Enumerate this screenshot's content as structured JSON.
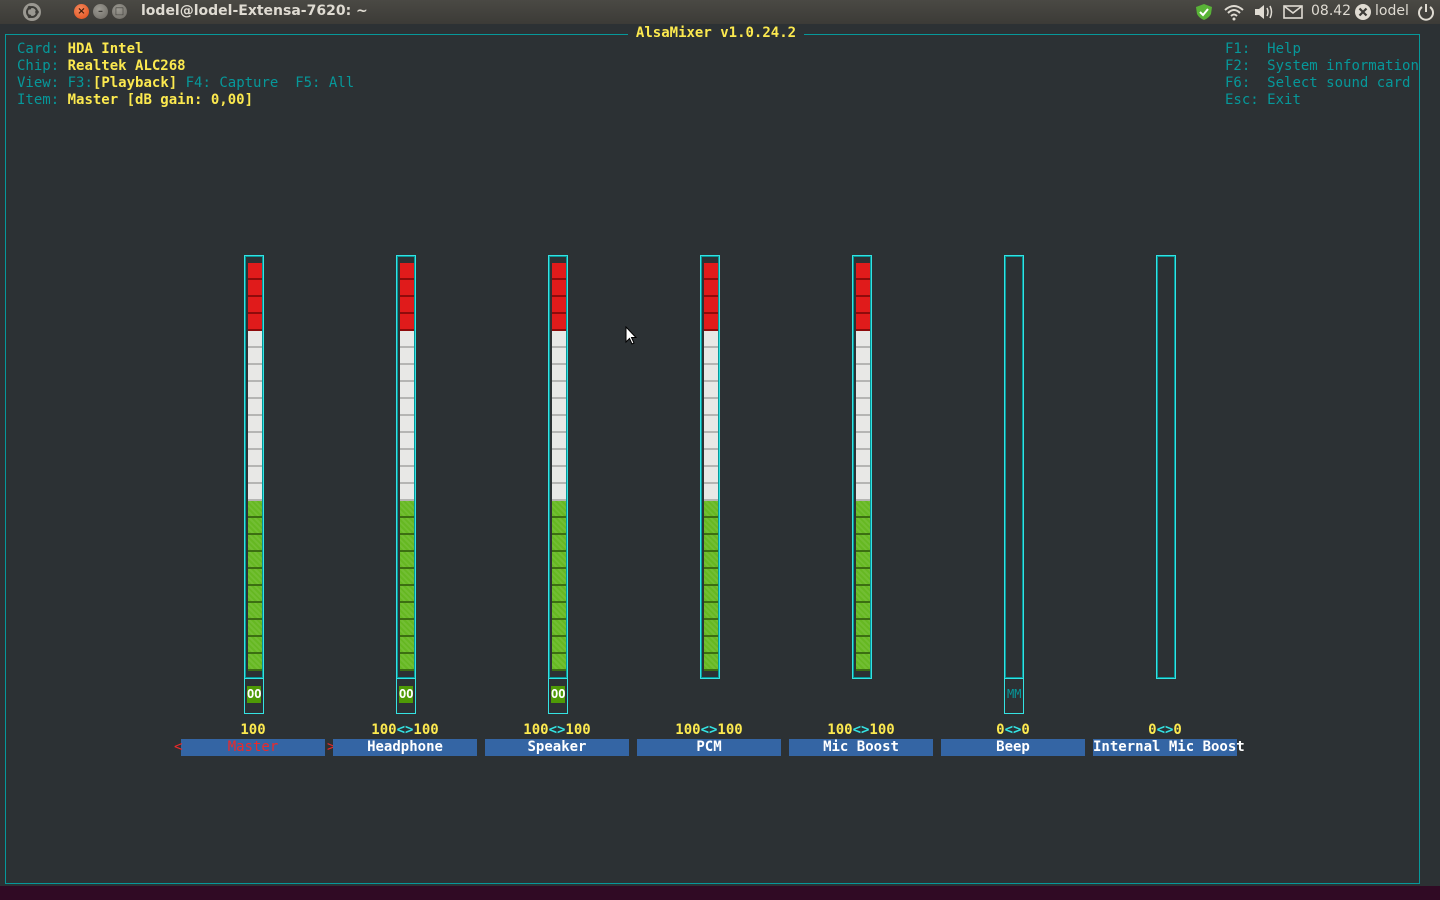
{
  "topbar": {
    "window_title": "lodel@lodel-Extensa-7620: ~",
    "close_glyph": "×",
    "minimize_glyph": "–",
    "maximize_glyph": "□",
    "clock": "08.42",
    "username": "lodel",
    "icons": [
      "ubuntu-logo-icon",
      "update-shield-icon",
      "wifi-icon",
      "volume-icon",
      "mail-icon",
      "account-status-icon",
      "power-icon"
    ]
  },
  "mixer": {
    "title": "AlsaMixer v1.0.24.2",
    "card_label": "Card:",
    "card_value": "HDA Intel",
    "chip_label": "Chip:",
    "chip_value": "Realtek ALC268",
    "view_label": "View:",
    "view_f3_key": "F3:",
    "view_f3_value": "[Playback]",
    "view_f4": "F4: Capture",
    "view_f5": "F5: All",
    "item_label": "Item:",
    "item_value": "Master [dB gain: 0,00]",
    "keys": [
      {
        "key": "F1:",
        "action": "Help"
      },
      {
        "key": "F2:",
        "action": "System information"
      },
      {
        "key": "F6:",
        "action": "Select sound card"
      },
      {
        "key": "Esc:",
        "action": "Exit"
      }
    ],
    "focus_left_arrow": "<",
    "focus_right_arrow": ">",
    "channels": [
      {
        "name": "Master",
        "value_left": "100",
        "value_sep": "",
        "value_right": "",
        "level": 1.0,
        "switch": "OO",
        "switch_on": true,
        "focused": true
      },
      {
        "name": "Headphone",
        "value_left": "100",
        "value_sep": "<>",
        "value_right": "100",
        "level": 1.0,
        "switch": "OO",
        "switch_on": true,
        "focused": false
      },
      {
        "name": "Speaker",
        "value_left": "100",
        "value_sep": "<>",
        "value_right": "100",
        "level": 1.0,
        "switch": "OO",
        "switch_on": true,
        "focused": false
      },
      {
        "name": "PCM",
        "value_left": "100",
        "value_sep": "<>",
        "value_right": "100",
        "level": 1.0,
        "switch": "",
        "switch_on": false,
        "focused": false
      },
      {
        "name": "Mic Boost",
        "value_left": "100",
        "value_sep": "<>",
        "value_right": "100",
        "level": 1.0,
        "switch": "",
        "switch_on": false,
        "focused": false
      },
      {
        "name": "Beep",
        "value_left": "0",
        "value_sep": "<>",
        "value_right": "0",
        "level": 0.0,
        "switch": "MM",
        "switch_on": false,
        "focused": false
      },
      {
        "name": "Internal Mic Boost",
        "value_left": "0",
        "value_sep": "<>",
        "value_right": "0",
        "level": 0.0,
        "switch": "",
        "switch_on": false,
        "focused": false
      }
    ]
  },
  "colors": {
    "panel_bg": "#3c3b37",
    "terminal_bg": "#2c3134",
    "cyan": "#06989a",
    "yellow": "#fce94f",
    "green": "#66b822",
    "white": "#e8e8e6",
    "red": "#e01b1b",
    "name_bg": "#3465a4"
  }
}
